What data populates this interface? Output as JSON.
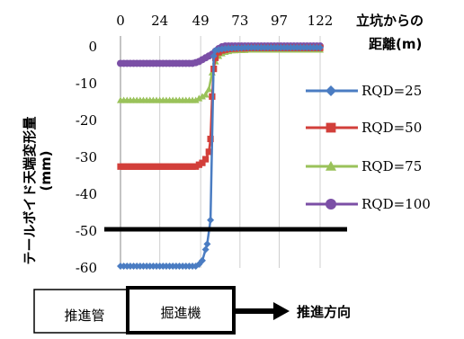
{
  "chart_data": {
    "type": "line",
    "x_axis": {
      "label_line1": "立坑からの",
      "label_line2": "距離(m)",
      "ticks": [
        0,
        24,
        49,
        73,
        97,
        122
      ],
      "range": [
        0,
        122
      ],
      "position": "top"
    },
    "y_axis": {
      "label_line1": "テールボイド天端変形量",
      "label_line2": "(mm)",
      "ticks": [
        0,
        -10,
        -20,
        -30,
        -40,
        -50,
        -60
      ],
      "range": [
        -60,
        0
      ]
    },
    "grid": "vertical",
    "legend_position": "right",
    "series": [
      {
        "name": "RQD=25",
        "color": "#4a7cc2",
        "marker": "diamond",
        "points": [
          [
            0,
            -59.5
          ],
          [
            2,
            -59.5
          ],
          [
            4,
            -59.5
          ],
          [
            6,
            -59.5
          ],
          [
            8,
            -59.5
          ],
          [
            10,
            -59.5
          ],
          [
            12,
            -59.5
          ],
          [
            14,
            -59.5
          ],
          [
            16,
            -59.5
          ],
          [
            18,
            -59.5
          ],
          [
            20,
            -59.5
          ],
          [
            22,
            -59.5
          ],
          [
            24,
            -59.5
          ],
          [
            26,
            -59.5
          ],
          [
            28,
            -59.5
          ],
          [
            30,
            -59.5
          ],
          [
            32,
            -59.5
          ],
          [
            34,
            -59.5
          ],
          [
            36,
            -59.5
          ],
          [
            38,
            -59.5
          ],
          [
            40,
            -59.5
          ],
          [
            42,
            -59.5
          ],
          [
            44,
            -59.5
          ],
          [
            46,
            -59.5
          ],
          [
            48,
            -59
          ],
          [
            50,
            -58
          ],
          [
            52,
            -55
          ],
          [
            53,
            -53.5
          ],
          [
            55,
            -47
          ],
          [
            57,
            -2.5
          ],
          [
            58,
            -1
          ],
          [
            60,
            -0.8
          ],
          [
            62,
            -0.6
          ],
          [
            64,
            -0.5
          ],
          [
            66,
            -0.4
          ],
          [
            68,
            -0.4
          ],
          [
            70,
            -0.3
          ],
          [
            72,
            -0.3
          ],
          [
            74,
            -0.3
          ],
          [
            76,
            -0.2
          ],
          [
            78,
            -0.2
          ],
          [
            80,
            -0.2
          ],
          [
            82,
            -0.2
          ],
          [
            84,
            -0.2
          ],
          [
            86,
            -0.2
          ],
          [
            88,
            -0.2
          ],
          [
            90,
            -0.2
          ],
          [
            92,
            -0.2
          ],
          [
            94,
            -0.2
          ],
          [
            96,
            -0.2
          ],
          [
            98,
            -0.2
          ],
          [
            100,
            -0.2
          ],
          [
            102,
            -0.2
          ],
          [
            104,
            -0.2
          ],
          [
            106,
            -0.2
          ],
          [
            108,
            -0.2
          ],
          [
            110,
            -0.2
          ],
          [
            112,
            -0.2
          ],
          [
            114,
            -0.2
          ],
          [
            116,
            -0.2
          ],
          [
            118,
            -0.2
          ],
          [
            120,
            -0.2
          ],
          [
            122,
            -0.2
          ]
        ]
      },
      {
        "name": "RQD=50",
        "color": "#d23f3a",
        "marker": "square",
        "points": [
          [
            0,
            -32.5
          ],
          [
            2,
            -32.5
          ],
          [
            4,
            -32.5
          ],
          [
            6,
            -32.5
          ],
          [
            8,
            -32.5
          ],
          [
            10,
            -32.5
          ],
          [
            12,
            -32.5
          ],
          [
            14,
            -32.5
          ],
          [
            16,
            -32.5
          ],
          [
            18,
            -32.5
          ],
          [
            20,
            -32.5
          ],
          [
            22,
            -32.5
          ],
          [
            24,
            -32.5
          ],
          [
            26,
            -32.5
          ],
          [
            28,
            -32.5
          ],
          [
            30,
            -32.5
          ],
          [
            32,
            -32.5
          ],
          [
            34,
            -32.5
          ],
          [
            36,
            -32.5
          ],
          [
            38,
            -32.5
          ],
          [
            40,
            -32.5
          ],
          [
            42,
            -32.5
          ],
          [
            44,
            -32.5
          ],
          [
            46,
            -32.5
          ],
          [
            48,
            -32
          ],
          [
            50,
            -31.5
          ],
          [
            52,
            -30.5
          ],
          [
            54,
            -28.5
          ],
          [
            55,
            -25
          ],
          [
            56,
            -13.5
          ],
          [
            57,
            -6
          ],
          [
            58,
            -3
          ],
          [
            60,
            -1.5
          ],
          [
            62,
            -1
          ],
          [
            64,
            -0.8
          ],
          [
            66,
            -0.6
          ],
          [
            68,
            -0.5
          ],
          [
            70,
            -0.5
          ],
          [
            72,
            -0.4
          ],
          [
            74,
            -0.4
          ],
          [
            76,
            -0.4
          ],
          [
            78,
            -0.3
          ],
          [
            80,
            -0.3
          ],
          [
            82,
            -0.3
          ],
          [
            84,
            -0.3
          ],
          [
            86,
            -0.3
          ],
          [
            88,
            -0.3
          ],
          [
            90,
            -0.3
          ],
          [
            92,
            -0.3
          ],
          [
            94,
            -0.3
          ],
          [
            96,
            -0.3
          ],
          [
            98,
            -0.3
          ],
          [
            100,
            -0.3
          ],
          [
            102,
            -0.3
          ],
          [
            104,
            -0.3
          ],
          [
            106,
            -0.3
          ],
          [
            108,
            -0.3
          ],
          [
            110,
            -0.3
          ],
          [
            112,
            -0.3
          ],
          [
            114,
            -0.3
          ],
          [
            116,
            -0.3
          ],
          [
            118,
            -0.3
          ],
          [
            120,
            -0.3
          ],
          [
            122,
            -0.3
          ]
        ]
      },
      {
        "name": "RQD=75",
        "color": "#9ac25a",
        "marker": "triangle",
        "points": [
          [
            0,
            -14.5
          ],
          [
            2,
            -14.5
          ],
          [
            4,
            -14.5
          ],
          [
            6,
            -14.5
          ],
          [
            8,
            -14.5
          ],
          [
            10,
            -14.5
          ],
          [
            12,
            -14.5
          ],
          [
            14,
            -14.5
          ],
          [
            16,
            -14.5
          ],
          [
            18,
            -14.5
          ],
          [
            20,
            -14.5
          ],
          [
            22,
            -14.5
          ],
          [
            24,
            -14.5
          ],
          [
            26,
            -14.5
          ],
          [
            28,
            -14.5
          ],
          [
            30,
            -14.5
          ],
          [
            32,
            -14.5
          ],
          [
            34,
            -14.5
          ],
          [
            36,
            -14.5
          ],
          [
            38,
            -14.5
          ],
          [
            40,
            -14.5
          ],
          [
            42,
            -14.5
          ],
          [
            44,
            -14.5
          ],
          [
            46,
            -14.5
          ],
          [
            48,
            -14
          ],
          [
            50,
            -13.5
          ],
          [
            52,
            -13
          ],
          [
            54,
            -11.5
          ],
          [
            56,
            -7
          ],
          [
            58,
            -4
          ],
          [
            60,
            -2.5
          ],
          [
            62,
            -1.8
          ],
          [
            64,
            -1.4
          ],
          [
            66,
            -1.2
          ],
          [
            68,
            -1
          ],
          [
            70,
            -1
          ],
          [
            72,
            -0.9
          ],
          [
            74,
            -0.9
          ],
          [
            76,
            -0.9
          ],
          [
            78,
            -0.8
          ],
          [
            80,
            -0.8
          ],
          [
            82,
            -0.8
          ],
          [
            84,
            -0.8
          ],
          [
            86,
            -0.8
          ],
          [
            88,
            -0.8
          ],
          [
            90,
            -0.8
          ],
          [
            92,
            -0.8
          ],
          [
            94,
            -0.8
          ],
          [
            96,
            -0.8
          ],
          [
            98,
            -0.8
          ],
          [
            100,
            -0.8
          ],
          [
            102,
            -0.8
          ],
          [
            104,
            -0.8
          ],
          [
            106,
            -0.8
          ],
          [
            108,
            -0.8
          ],
          [
            110,
            -0.8
          ],
          [
            112,
            -0.8
          ],
          [
            114,
            -0.8
          ],
          [
            116,
            -0.8
          ],
          [
            118,
            -0.8
          ],
          [
            120,
            -0.8
          ],
          [
            122,
            -0.8
          ]
        ]
      },
      {
        "name": "RQD=100",
        "color": "#7b4fa6",
        "marker": "circle",
        "points": [
          [
            0,
            -4.5
          ],
          [
            2,
            -4.5
          ],
          [
            4,
            -4.5
          ],
          [
            6,
            -4.5
          ],
          [
            8,
            -4.5
          ],
          [
            10,
            -4.5
          ],
          [
            12,
            -4.5
          ],
          [
            14,
            -4.5
          ],
          [
            16,
            -4.5
          ],
          [
            18,
            -4.5
          ],
          [
            20,
            -4.5
          ],
          [
            22,
            -4.5
          ],
          [
            24,
            -4.5
          ],
          [
            26,
            -4.5
          ],
          [
            28,
            -4.5
          ],
          [
            30,
            -4.5
          ],
          [
            32,
            -4.5
          ],
          [
            34,
            -4.5
          ],
          [
            36,
            -4.5
          ],
          [
            38,
            -4.5
          ],
          [
            40,
            -4.5
          ],
          [
            42,
            -4.5
          ],
          [
            44,
            -4.5
          ],
          [
            46,
            -4.3
          ],
          [
            48,
            -4
          ],
          [
            50,
            -3.5
          ],
          [
            52,
            -3
          ],
          [
            54,
            -2.5
          ],
          [
            56,
            -2
          ],
          [
            58,
            -1.2
          ],
          [
            60,
            -0.5
          ],
          [
            62,
            0
          ],
          [
            64,
            0.2
          ],
          [
            66,
            0.2
          ],
          [
            68,
            0.2
          ],
          [
            70,
            0.2
          ],
          [
            72,
            0.2
          ],
          [
            74,
            0.2
          ],
          [
            76,
            0.2
          ],
          [
            78,
            0.2
          ],
          [
            80,
            0.2
          ],
          [
            82,
            0.2
          ],
          [
            84,
            0.2
          ],
          [
            86,
            0.2
          ],
          [
            88,
            0.2
          ],
          [
            90,
            0.2
          ],
          [
            92,
            0.2
          ],
          [
            94,
            0.2
          ],
          [
            96,
            0.2
          ],
          [
            98,
            0.2
          ],
          [
            100,
            0.2
          ],
          [
            102,
            0.2
          ],
          [
            104,
            0.2
          ],
          [
            106,
            0.2
          ],
          [
            108,
            0.2
          ],
          [
            110,
            0.2
          ],
          [
            112,
            0.2
          ],
          [
            114,
            0.2
          ],
          [
            116,
            0.2
          ],
          [
            118,
            0.2
          ],
          [
            120,
            0.2
          ],
          [
            122,
            0.2
          ]
        ]
      }
    ],
    "reference_line": {
      "y": -49.5,
      "color": "#000000"
    }
  },
  "diagram": {
    "pipe_label": "推進管",
    "machine_label": "掘進機",
    "direction_label": "推進方向"
  }
}
